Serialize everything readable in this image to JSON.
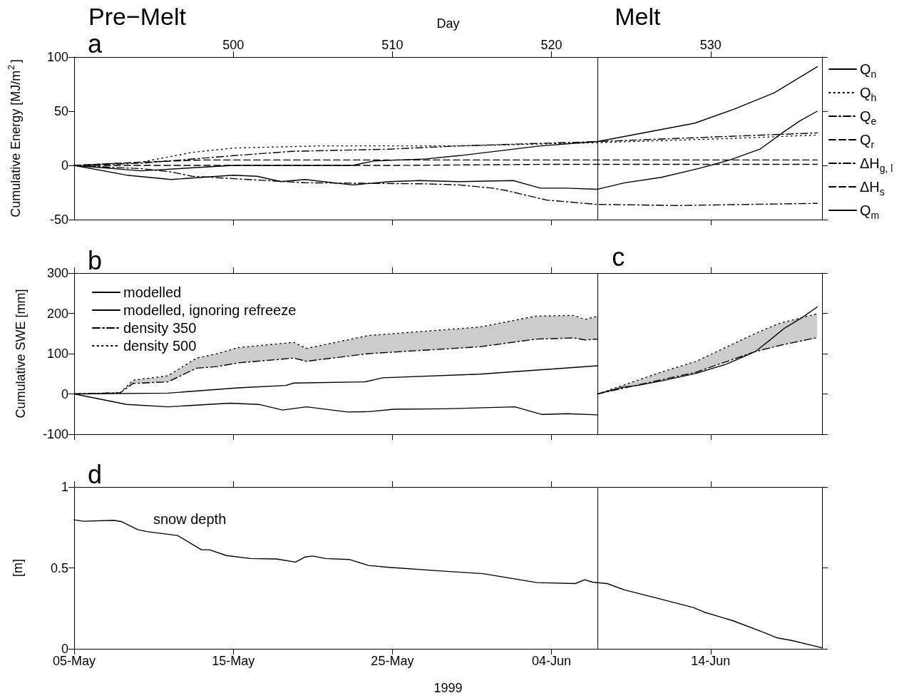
{
  "chart_data": [
    {
      "type": "line",
      "title": "a",
      "ylabel": "Cumulative Energy [MJ/m$^{2}$]",
      "xlabel": "Day",
      "annotations": [
        "Pre−Melt",
        "Melt"
      ],
      "xlim": [
        490,
        537
      ],
      "xticks": [
        500,
        510,
        520,
        530
      ],
      "ylim": [
        -50,
        100
      ],
      "yticks": [
        -50,
        0,
        50,
        100
      ],
      "legend": "right",
      "ref_lines": [
        {
          "axis": "x",
          "value": 522.9
        }
      ],
      "series": [
        {
          "name": "Q$_{n}$",
          "color": "#000000",
          "line_style": "solid",
          "x": [
            490,
            494.2,
            500,
            507.5,
            508.8,
            512.1,
            514.2,
            519.3,
            522.9,
            529,
            531.5,
            534,
            536.7
          ],
          "values": [
            0,
            -5,
            0,
            0,
            4,
            6,
            9,
            18,
            22,
            39,
            52,
            67,
            91
          ]
        },
        {
          "name": "Q$_{h}$",
          "color": "#000000",
          "line_style": "dotted",
          "x": [
            490,
            494.2,
            497.4,
            500,
            505.4,
            514.2,
            522.9,
            531.5,
            536.7
          ],
          "values": [
            0,
            3,
            12,
            16,
            18,
            18,
            21,
            25,
            28
          ]
        },
        {
          "name": "Q$_{e}$",
          "color": "#000000",
          "line_style": "dashdot",
          "x": [
            490,
            494.2,
            496.1,
            497.4,
            504.5,
            512.1,
            514.2,
            516.3,
            517.1,
            519.7,
            522.9,
            528,
            536.7
          ],
          "values": [
            0,
            -3,
            -6,
            -10,
            -16,
            -17,
            -18,
            -21,
            -23,
            -32,
            -36,
            -37,
            -35
          ]
        },
        {
          "name": "Q$_{r}$",
          "color": "#000000",
          "line_style": "dashed",
          "x": [
            490,
            500,
            510,
            520,
            530,
            536.7
          ],
          "values": [
            0,
            0,
            0,
            1,
            1,
            1
          ]
        },
        {
          "name": "ΔH$_{g, l}$",
          "color": "#000000",
          "line_style": "dashdot",
          "x": [
            490,
            494.2,
            500,
            503.7,
            509.8,
            514.2,
            522.9,
            536.7
          ],
          "values": [
            0,
            2,
            9,
            13,
            15,
            18,
            22,
            30
          ]
        },
        {
          "name": "ΔH$_{s}$",
          "color": "#000000",
          "line_style": "dashed",
          "x": [
            490,
            494.2,
            498,
            500,
            536.7
          ],
          "values": [
            0,
            3,
            5,
            5,
            5
          ]
        },
        {
          "name": "Q$_{m}$",
          "color": "#000000",
          "line_style": "solid",
          "x": [
            490,
            493.3,
            496.1,
            500,
            501.5,
            503,
            504.5,
            507.5,
            509.8,
            511.7,
            514.2,
            517.6,
            519.3,
            520.9,
            522.9,
            524.6,
            526.9,
            529.2,
            531.2,
            533.1,
            534.6,
            535.6,
            536.7
          ],
          "values": [
            0,
            -9,
            -13,
            -9,
            -10,
            -15,
            -13,
            -18,
            -15,
            -14,
            -15,
            -14,
            -21,
            -21,
            -22,
            -16,
            -11,
            -3,
            5,
            15,
            31,
            41,
            50
          ]
        }
      ]
    },
    {
      "type": "line",
      "title": "b",
      "annotations": [
        "c"
      ],
      "ylabel": "Cumulative SWE [mm]",
      "xlim": [
        490,
        537
      ],
      "xticks": [
        490,
        500,
        510,
        520,
        530
      ],
      "tick_labels": "y",
      "ylim": [
        -100,
        300
      ],
      "yticks": [
        -100,
        0,
        100,
        200,
        300
      ],
      "legend": "top left",
      "ref_lines": [
        {
          "axis": "x",
          "value": 522.9
        }
      ],
      "series": [
        {
          "name": "modelled",
          "color": "#000000",
          "line_style": "solid",
          "x": [
            490,
            493.3,
            495.9,
            499.8,
            501.6,
            503.1,
            504.6,
            507.2,
            508.5,
            510.1,
            513.3,
            517.7,
            519.4,
            521,
            522.9
          ],
          "values": [
            0,
            -26,
            -32,
            -23,
            -26,
            -40,
            -32,
            -45,
            -44,
            -38,
            -37,
            -32,
            -51,
            -49,
            -52
          ]
        },
        {
          "name": "modelled, ignoring refreeze",
          "color": "#000000",
          "line_style": "solid",
          "x": [
            490,
            495.9,
            500.3,
            503.3,
            503.8,
            508.3,
            509.4,
            515.5,
            522.9
          ],
          "values": [
            0,
            2,
            15,
            21,
            27,
            30,
            40,
            49,
            70
          ]
        },
        {
          "name": "density 350",
          "color": "#000000",
          "line_style": "dashdot",
          "x": [
            490,
            492.9,
            493.7,
            495.9,
            497.7,
            499,
            500.3,
            503.8,
            504.6,
            508.5,
            515.5,
            519,
            521.4,
            522.1,
            522.9
          ],
          "values": [
            0,
            3,
            26,
            30,
            64,
            68,
            77,
            89,
            81,
            100,
            117,
            136,
            139,
            134,
            136
          ]
        },
        {
          "name": "density 500",
          "color": "#000000",
          "line_style": "dotted",
          "x": [
            490,
            492.9,
            493.7,
            495.9,
            497.7,
            499,
            500.3,
            503.8,
            504.6,
            508.5,
            515.5,
            519,
            521.4,
            522.1,
            522.9
          ],
          "values": [
            0,
            3,
            34,
            45,
            89,
            100,
            115,
            128,
            113,
            145,
            166,
            193,
            195,
            185,
            193
          ],
          "lower": [
            0,
            3,
            26,
            30,
            64,
            68,
            77,
            89,
            81,
            100,
            117,
            136,
            139,
            134,
            136
          ],
          "upper": [
            0,
            3,
            34,
            45,
            89,
            100,
            115,
            128,
            113,
            145,
            166,
            193,
            195,
            185,
            193
          ]
        },
        {
          "color": "#000000",
          "line_style": "dashdot",
          "x": [
            522.9,
            526.9,
            529.1,
            532.8,
            534.3,
            536.7
          ],
          "values": [
            0,
            35,
            54,
            105,
            120,
            140
          ]
        },
        {
          "color": "#000000",
          "line_style": "dotted",
          "x": [
            522.9,
            526.9,
            529.1,
            532.8,
            534.3,
            536.7
          ],
          "values": [
            0,
            54,
            81,
            150,
            175,
            199
          ],
          "lower": [
            0,
            35,
            54,
            105,
            120,
            140
          ],
          "upper": [
            0,
            54,
            81,
            150,
            175,
            199
          ]
        },
        {
          "color": "#000000",
          "line_style": "solid",
          "x": [
            522.9,
            524.5,
            525.4,
            526.9,
            529.1,
            531,
            532.8,
            533.7,
            534.6,
            535.8,
            536.7
          ],
          "values": [
            0,
            17,
            21,
            32,
            51,
            74,
            105,
            133,
            162,
            191,
            216
          ]
        }
      ]
    },
    {
      "type": "line",
      "title": "d",
      "ylabel": "[m]",
      "xlabel": "1999",
      "annotations": [
        "snow depth"
      ],
      "xlim": [
        "1999-05-05",
        "1999-06-21"
      ],
      "xticks": [
        {
          "value": "1999-05-05",
          "label": "05-May"
        },
        {
          "value": "1999-05-15",
          "label": "15-May"
        },
        {
          "value": "1999-05-25",
          "label": "25-May"
        },
        {
          "value": "1999-06-04",
          "label": "04-Jun"
        },
        {
          "value": "1999-06-14",
          "label": "14-Jun"
        }
      ],
      "ylim": [
        0,
        1
      ],
      "yticks": [
        0,
        0.5,
        1
      ],
      "ref_lines": [
        {
          "axis": "x",
          "value": "1999-06-06T22:00"
        }
      ],
      "series": [
        {
          "color": "#000000",
          "line_style": "solid",
          "x": [
            "1999-05-05",
            "1999-05-05T14:00",
            "1999-05-07T12:00",
            "1999-05-08",
            "1999-05-09",
            "1999-05-09T14:00",
            "1999-05-11T12:00",
            "1999-05-13",
            "1999-05-13T12:00",
            "1999-05-14T14:00",
            "1999-05-16T02:00",
            "1999-05-17T17:00",
            "1999-05-18T22:00",
            "1999-05-19T12:00",
            "1999-05-20",
            "1999-05-20T19:00",
            "1999-05-22T07:00",
            "1999-05-23T12:00",
            "1999-05-24T19:00",
            "1999-05-27T22:00",
            "1999-05-30T17:00",
            "1999-06-03T02:00",
            "1999-06-05T12:00",
            "1999-06-06T02:00",
            "1999-06-06T14:00",
            "1999-06-07T12:00",
            "1999-06-08T14:00",
            "1999-06-10T19:00",
            "1999-06-12T22:00",
            "1999-06-13T14:00",
            "1999-06-15T10:00",
            "1999-06-17T07:00",
            "1999-06-18T05:00",
            "1999-06-19T02:00",
            "1999-06-21"
          ],
          "values": [
            0.797,
            0.788,
            0.794,
            0.785,
            0.736,
            0.724,
            0.7,
            0.612,
            0.612,
            0.576,
            0.558,
            0.555,
            0.536,
            0.567,
            0.573,
            0.558,
            0.552,
            0.515,
            0.503,
            0.482,
            0.464,
            0.409,
            0.403,
            0.427,
            0.412,
            0.403,
            0.364,
            0.309,
            0.255,
            0.227,
            0.173,
            0.103,
            0.067,
            0.052,
            0.006
          ]
        }
      ]
    }
  ]
}
